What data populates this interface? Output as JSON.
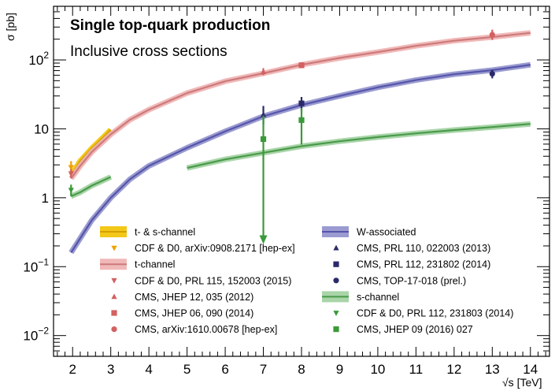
{
  "chart_data": {
    "type": "scatter",
    "title": "Single top-quark production",
    "subtitle": "Inclusive cross sections",
    "ylabel": "σ [pb]",
    "xlabel": "√s [TeV]",
    "xlim": [
      1.5,
      14.5
    ],
    "ylim": [
      0.005,
      600
    ],
    "y_scale": "log",
    "x_ticks": [
      "2",
      "3",
      "4",
      "5",
      "6",
      "7",
      "8",
      "9",
      "10",
      "11",
      "12",
      "13",
      "14"
    ],
    "y_ticks": [
      {
        "value": 0.01,
        "base": "10",
        "exp": "−2"
      },
      {
        "value": 0.1,
        "base": "10",
        "exp": "−1"
      },
      {
        "value": 1,
        "base": "1",
        "exp": ""
      },
      {
        "value": 10,
        "base": "10",
        "exp": ""
      },
      {
        "value": 100,
        "base": "10",
        "exp": "2"
      }
    ],
    "theory_bands": [
      {
        "name": "t- & s-channel",
        "color": "#d4a000",
        "band_color": "#f2c200",
        "points": [
          [
            1.96,
            2.1
          ],
          [
            2.2,
            3.4
          ],
          [
            2.5,
            5.2
          ],
          [
            2.8,
            7.5
          ],
          [
            3.0,
            9.7
          ]
        ]
      },
      {
        "name": "t-channel",
        "color": "#cc7a7a",
        "band_color": "#f0b0b0",
        "points": [
          [
            1.96,
            1.9
          ],
          [
            2.2,
            2.9
          ],
          [
            2.5,
            4.6
          ],
          [
            3,
            8.3
          ],
          [
            3.5,
            13.5
          ],
          [
            4,
            19
          ],
          [
            5,
            33
          ],
          [
            6,
            49
          ],
          [
            7,
            64
          ],
          [
            8,
            85
          ],
          [
            9,
            107
          ],
          [
            10,
            130
          ],
          [
            11,
            160
          ],
          [
            12,
            190
          ],
          [
            13,
            215
          ],
          [
            14,
            247
          ]
        ]
      },
      {
        "name": "W-associated",
        "color": "#5555aa",
        "band_color": "#9090cc",
        "points": [
          [
            1.96,
            0.16
          ],
          [
            2.5,
            0.47
          ],
          [
            3,
            1.0
          ],
          [
            3.5,
            1.85
          ],
          [
            4,
            2.9
          ],
          [
            5,
            5.3
          ],
          [
            6,
            9.2
          ],
          [
            7,
            15.2
          ],
          [
            8,
            22.2
          ],
          [
            9,
            30
          ],
          [
            10,
            40
          ],
          [
            11,
            51
          ],
          [
            12,
            62
          ],
          [
            13,
            71
          ],
          [
            14,
            85
          ]
        ]
      },
      {
        "name": "s-channel",
        "color": "#4a9a4a",
        "band_color": "#a0d0a0",
        "segments": [
          [
            [
              1.96,
              1.05
            ],
            [
              2.2,
              1.2
            ],
            [
              2.5,
              1.5
            ],
            [
              3.0,
              2.0
            ]
          ],
          [
            [
              5.0,
              2.7
            ],
            [
              6,
              3.6
            ],
            [
              7,
              4.5
            ],
            [
              8,
              5.6
            ],
            [
              9,
              6.6
            ],
            [
              10,
              7.6
            ],
            [
              11,
              8.6
            ],
            [
              12,
              9.6
            ],
            [
              13,
              10.6
            ],
            [
              14,
              11.8
            ]
          ]
        ]
      }
    ],
    "measurements": [
      {
        "name": "CDF & D0, arXiv:0908.2171 [hep-ex]",
        "marker": "triangle-down",
        "color": "#f0a000",
        "points": [
          {
            "x": 1.96,
            "y": 2.76,
            "lo": 2.3,
            "hi": 3.4
          }
        ]
      },
      {
        "name": "CDF & D0, PRL 115, 152003 (2015)",
        "marker": "triangle-down",
        "color": "#d46060",
        "points": [
          {
            "x": 1.96,
            "y": 2.25,
            "lo": 1.95,
            "hi": 2.6
          }
        ]
      },
      {
        "name": "CMS, JHEP 12, 035 (2012)",
        "marker": "triangle-up",
        "color": "#d46060",
        "points": [
          {
            "x": 7.0,
            "y": 67.2,
            "lo": 60,
            "hi": 76
          }
        ]
      },
      {
        "name": "CMS, JHEP 06, 090 (2014)",
        "marker": "square",
        "color": "#d46060",
        "points": [
          {
            "x": 8.0,
            "y": 83.6,
            "lo": 76,
            "hi": 92
          }
        ]
      },
      {
        "name": "CMS, arXiv:1610.00678 [hep-ex]",
        "marker": "circle",
        "color": "#d46060",
        "points": [
          {
            "x": 13.0,
            "y": 232,
            "lo": 195,
            "hi": 275
          }
        ]
      },
      {
        "name": "CMS, PRL 110, 022003 (2013)",
        "marker": "triangle-up",
        "color": "#2a2a6a",
        "points": [
          {
            "x": 7.0,
            "y": 16,
            "lo": 11.5,
            "hi": 21.5
          }
        ]
      },
      {
        "name": "CMS, PRL 112, 231802 (2014)",
        "marker": "square",
        "color": "#2a2a6a",
        "points": [
          {
            "x": 8.0,
            "y": 23.4,
            "lo": 18,
            "hi": 29
          }
        ]
      },
      {
        "name": "CMS, TOP-17-018 (prel.)",
        "marker": "circle",
        "color": "#2a2a6a",
        "points": [
          {
            "x": 13.0,
            "y": 63,
            "lo": 54,
            "hi": 72
          }
        ]
      },
      {
        "name": "CDF & D0, PRL 112, 231803 (2014)",
        "marker": "triangle-down",
        "color": "#3a9a3a",
        "points": [
          {
            "x": 1.96,
            "y": 1.29,
            "lo": 1.05,
            "hi": 1.55
          }
        ]
      },
      {
        "name": "CMS, JHEP 09 (2016) 027",
        "marker": "square",
        "color": "#3a9a3a",
        "points": [
          {
            "x": 7.0,
            "y": 7.1,
            "lo": 0.25,
            "hi": 15.5,
            "arrow": true
          },
          {
            "x": 8.0,
            "y": 13.4,
            "lo": 5.9,
            "hi": 20
          }
        ]
      }
    ],
    "legend": {
      "left": [
        {
          "label": "t- & s-channel",
          "kind": "band",
          "color": "#d4a000",
          "band_color": "#f2c200"
        },
        {
          "label": "CDF & D0, arXiv:0908.2171 [hep-ex]",
          "kind": "marker",
          "marker": "triangle-down",
          "color": "#f0a000"
        },
        {
          "label": "t-channel",
          "kind": "band",
          "color": "#cc7a7a",
          "band_color": "#f0b0b0"
        },
        {
          "label": "CDF & D0, PRL 115, 152003 (2015)",
          "kind": "marker",
          "marker": "triangle-down",
          "color": "#d46060"
        },
        {
          "label": "CMS, JHEP 12, 035 (2012)",
          "kind": "marker",
          "marker": "triangle-up",
          "color": "#d46060"
        },
        {
          "label": "CMS, JHEP 06, 090 (2014)",
          "kind": "marker",
          "marker": "square",
          "color": "#d46060"
        },
        {
          "label": "CMS, arXiv:1610.00678 [hep-ex]",
          "kind": "marker",
          "marker": "circle",
          "color": "#d46060"
        }
      ],
      "right": [
        {
          "label": "W-associated",
          "kind": "band",
          "color": "#5555aa",
          "band_color": "#9090cc"
        },
        {
          "label": "CMS, PRL 110, 022003 (2013)",
          "kind": "marker",
          "marker": "triangle-up",
          "color": "#2a2a6a"
        },
        {
          "label": "CMS, PRL 112, 231802 (2014)",
          "kind": "marker",
          "marker": "square",
          "color": "#2a2a6a"
        },
        {
          "label": "CMS, TOP-17-018 (prel.)",
          "kind": "marker",
          "marker": "circle",
          "color": "#2a2a6a"
        },
        {
          "label": "s-channel",
          "kind": "band",
          "color": "#4a9a4a",
          "band_color": "#a0d0a0"
        },
        {
          "label": "CDF & D0, PRL 112, 231803 (2014)",
          "kind": "marker",
          "marker": "triangle-down",
          "color": "#3a9a3a"
        },
        {
          "label": "CMS, JHEP 09 (2016) 027",
          "kind": "marker",
          "marker": "square",
          "color": "#3a9a3a"
        }
      ]
    }
  }
}
